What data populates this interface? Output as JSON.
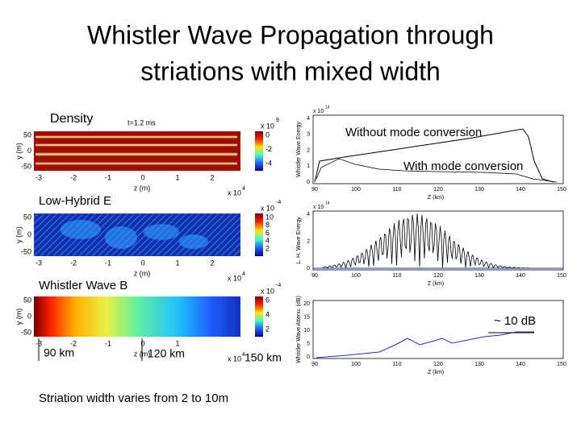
{
  "title_lines": [
    "Whistler Wave Propagation through",
    "striations with mixed width"
  ],
  "panels": [
    {
      "label": "Density",
      "time": "t=1.2 ms",
      "ylabel": "y (m)",
      "yticks": [
        50,
        0,
        -50
      ],
      "xticks": [
        -3,
        -2,
        -1,
        0,
        1,
        2
      ],
      "xlabel": "z (m)",
      "xscale": "x 10",
      "xexp": "4",
      "cbscale": "x 10",
      "cbexp": "9",
      "cbticks": [
        0,
        -2,
        -4
      ]
    },
    {
      "label": "Low-Hybrid E",
      "ylabel": "y (m)",
      "yticks": [
        50,
        0,
        -50
      ],
      "xticks": [
        -3,
        -2,
        -1,
        0,
        1,
        2
      ],
      "xlabel": "z (m)",
      "xscale": "x 10",
      "xexp": "4",
      "cbscale": "x 10",
      "cbexp": "-4",
      "cbticks": [
        10,
        8,
        6,
        4,
        2
      ]
    },
    {
      "label": "Whistler Wave B",
      "ylabel": "y (m)",
      "yticks": [
        50,
        0,
        -50
      ],
      "xticks": [
        -3,
        -2,
        -1,
        0,
        1
      ],
      "xlabel": "z (m)",
      "xscale": "x 10",
      "xexp": "4",
      "cbscale": "x 10",
      "cbexp": "-4",
      "cbticks": [
        6,
        4,
        2
      ]
    }
  ],
  "plots": [
    {
      "ylabel": "Whistler Wave Energy",
      "scale": "x 10",
      "exp": "14",
      "yticks": [
        4,
        3,
        2,
        1,
        0
      ],
      "xticks": [
        90,
        100,
        110,
        120,
        130,
        140,
        150
      ],
      "xlabel": "Z (km)"
    },
    {
      "ylabel": "L. H. Wave Energy",
      "scale": "x 10",
      "exp": "14",
      "yticks": [
        4,
        2,
        0
      ],
      "xticks": [
        90,
        100,
        110,
        120,
        130,
        140,
        150
      ],
      "xlabel": "Z (km)"
    },
    {
      "ylabel": "Whistler Wave Attenu. (dB)",
      "yticks": [
        20,
        15,
        10,
        5,
        0
      ],
      "xticks": [
        90,
        100,
        110,
        120,
        130,
        140,
        150
      ],
      "xlabel": "Z (km)"
    }
  ],
  "annotations": {
    "without": "Without mode conversion",
    "with": "With mode conversion",
    "db": "~ 10 dB",
    "km90": "90 km",
    "km120": "120 km",
    "km150": "150 km",
    "footer": "Striation width varies from 2 to 10m"
  }
}
